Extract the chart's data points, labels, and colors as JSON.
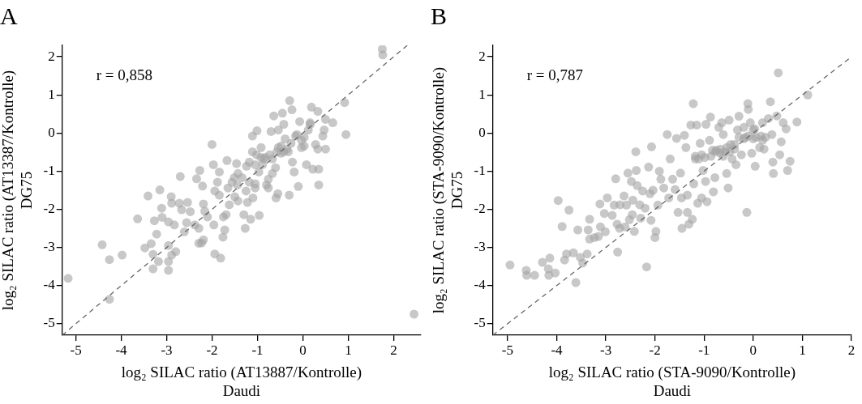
{
  "chart_data": [
    {
      "type": "scatter",
      "title": "A",
      "xlabel": "log₂ SILAC ratio (AT13887/Kontrolle)\nDaudi",
      "ylabel": "log₂ SILAC ratio (AT13387/Kontrolle)\nDG75",
      "annotations": [
        "r = 0,858"
      ],
      "xlim": [
        -5.3,
        2.6
      ],
      "ylim": [
        -5.3,
        2.3
      ],
      "xticks": [
        -5,
        -4,
        -3,
        -2,
        -1,
        0,
        1,
        2
      ],
      "yticks": [
        -5,
        -4,
        -3,
        -2,
        -1,
        0,
        1,
        2
      ],
      "grid": false,
      "legend": false,
      "series": [
        {
          "type": "scatter",
          "marker": "circle",
          "color": "#a3a3a3",
          "x": [
            -5.17,
            -4.42,
            -4.26,
            -3.98,
            -4.26,
            -3.64,
            -3.48,
            -3.34,
            -3.3,
            -3.3,
            -3.22,
            -3.18,
            -3.27,
            -3.41,
            -3.15,
            -3.11,
            -3.1,
            -2.96,
            -2.96,
            -2.96,
            -2.96,
            -2.9,
            -2.89,
            -2.83,
            -2.8,
            -2.89,
            -2.72,
            -2.7,
            -2.67,
            -2.61,
            -2.56,
            -2.54,
            -2.48,
            -2.38,
            -2.34,
            -2.29,
            -2.27,
            -2.29,
            -2.23,
            -2.19,
            -2.21,
            -2.19,
            -2.16,
            -2.1,
            -2.0,
            -1.97,
            -1.96,
            -1.94,
            -1.81,
            -1.94,
            -1.88,
            -1.84,
            -1.84,
            -1.76,
            -1.75,
            -1.72,
            -1.69,
            -1.67,
            -1.65,
            -1.62,
            -1.51,
            -1.5,
            -1.46,
            -1.44,
            -1.43,
            -1.34,
            -1.3,
            -1.27,
            -1.25,
            -1.22,
            -1.18,
            -1.15,
            -1.1,
            -1.05,
            -1.05,
            -1.02,
            -0.96,
            -0.97,
            -1.11,
            -1.01,
            -0.92,
            -0.86,
            -0.8,
            -0.76,
            -0.7,
            -0.67,
            -0.64,
            -0.59,
            -0.55,
            -0.54,
            -0.48,
            -0.45,
            -0.42,
            -0.39,
            -0.35,
            -0.3,
            -0.29,
            -0.24,
            -0.23,
            -0.19,
            -0.13,
            -0.1,
            -0.07,
            -0.03,
            0.03,
            0.16,
            0.19,
            0.22,
            0.33,
            0.35,
            0.35,
            0.28,
            0.33,
            0.44,
            0.47,
            0.5,
            0.5,
            0.66,
            0.92,
            0.95,
            -0.92,
            -0.83,
            -0.73,
            -0.67,
            -0.57,
            -0.54,
            -0.48,
            -0.42,
            -0.32,
            -0.26,
            -0.16,
            -0.03,
            0.03,
            0.12,
            0.16,
            0.08,
            -1.18,
            -1.24,
            -1.11,
            -0.89,
            -0.76,
            -0.6,
            -1.43,
            -1.56,
            -1.05,
            1.75,
            1.76,
            2.45
          ],
          "values": [
            -3.81,
            -2.93,
            -3.32,
            -3.2,
            -4.36,
            -2.25,
            -3.01,
            -2.9,
            -3.18,
            -3.56,
            -2.65,
            -3.37,
            -2.3,
            -1.65,
            -1.49,
            -1.97,
            -2.21,
            -2.33,
            -2.95,
            -3.37,
            -3.6,
            -1.67,
            -1.84,
            -2.41,
            -3.11,
            -3.2,
            -1.84,
            -1.14,
            -2.01,
            -2.59,
            -2.35,
            -1.82,
            -2.06,
            -2.41,
            -1.2,
            -2.5,
            -0.98,
            -2.89,
            -2.88,
            -2.8,
            -1.39,
            -1.86,
            -2.05,
            -2.2,
            -0.3,
            -0.83,
            -2.41,
            -3.17,
            -3.28,
            -1.52,
            -1.29,
            -1.02,
            -1.63,
            -2.73,
            -2.2,
            -2.54,
            -2.14,
            -0.72,
            -1.44,
            -1.88,
            -1.17,
            -1.67,
            -0.8,
            -1.36,
            -1.78,
            -1.17,
            -2.14,
            -2.5,
            -1.52,
            -1.82,
            -1.29,
            -2.26,
            -1.7,
            -1.33,
            -0.83,
            -0.57,
            -2.16,
            -1.02,
            -0.08,
            0.06,
            -0.38,
            -0.68,
            -1.36,
            -1.21,
            0.04,
            -1.06,
            0.45,
            -1.7,
            -1.59,
            0.08,
            -0.53,
            0.52,
            0.23,
            -0.15,
            -0.42,
            -1.63,
            0.85,
            0.61,
            -0.76,
            -1.02,
            -0.04,
            -1.4,
            0.3,
            -0.38,
            -0.34,
            0.27,
            0.68,
            -0.95,
            0.57,
            -0.95,
            -1.36,
            -0.3,
            -0.42,
            -0.08,
            0.08,
            0.36,
            -0.42,
            0.27,
            0.8,
            -0.04,
            -0.64,
            -0.64,
            -0.57,
            -0.68,
            -0.49,
            -0.38,
            -0.34,
            -0.49,
            -0.49,
            -0.27,
            -0.08,
            -0.19,
            -0.11,
            0.08,
            0.23,
            -0.83,
            -0.76,
            -0.87,
            -0.49,
            -0.83,
            -1.44,
            -0.91,
            -1.06,
            -1.29,
            -1.44,
            2.2,
            2.05,
            -4.75
          ]
        },
        {
          "type": "line",
          "color": "#666666",
          "line_style": "dashed",
          "x": [
            -5.3,
            2.3
          ],
          "values": [
            -5.3,
            2.3
          ]
        }
      ]
    },
    {
      "type": "scatter",
      "title": "B",
      "xlabel": "log₂ SILAC ratio (STA-9090/Kontrolle)\nDaudi",
      "ylabel": "log₂ SILAC ratio (STA-9090/Kontrolle)\nDG75",
      "annotations": [
        "r = 0,787"
      ],
      "xlim": [
        -5.3,
        2.0
      ],
      "ylim": [
        -5.3,
        2.3
      ],
      "xticks": [
        -5,
        -4,
        -3,
        -2,
        -1,
        0,
        1,
        2
      ],
      "yticks": [
        -5,
        -4,
        -3,
        -2,
        -1,
        0,
        1,
        2
      ],
      "grid": false,
      "legend": false,
      "series": [
        {
          "type": "scatter",
          "marker": "circle",
          "color": "#a3a3a3",
          "x": [
            -4.95,
            -4.62,
            -4.61,
            -4.45,
            -4.29,
            -4.14,
            -4.17,
            -4.16,
            -4.03,
            -3.97,
            -3.89,
            -3.84,
            -3.8,
            -3.75,
            -3.66,
            -3.61,
            -3.57,
            -3.52,
            -3.47,
            -3.38,
            -3.36,
            -3.33,
            -3.33,
            -3.23,
            -3.15,
            -3.12,
            -3.11,
            -3.03,
            -3.01,
            -2.97,
            -2.87,
            -2.83,
            -2.8,
            -2.77,
            -2.76,
            -2.72,
            -2.71,
            -2.63,
            -2.61,
            -2.58,
            -2.55,
            -2.52,
            -2.48,
            -2.46,
            -2.45,
            -2.42,
            -2.39,
            -2.38,
            -2.36,
            -2.31,
            -2.29,
            -2.25,
            -2.2,
            -2.17,
            -2.13,
            -2.1,
            -2.08,
            -2.07,
            -2.04,
            -2.0,
            -1.98,
            -1.94,
            -1.91,
            -1.88,
            -1.82,
            -1.75,
            -1.72,
            -1.69,
            -1.64,
            -1.59,
            -1.56,
            -1.53,
            -1.48,
            -1.46,
            -1.45,
            -1.4,
            -1.37,
            -1.34,
            -1.34,
            -1.31,
            -1.27,
            -1.24,
            -1.22,
            -1.21,
            -1.18,
            -1.15,
            -1.13,
            -1.08,
            -1.05,
            -1.02,
            -0.97,
            -0.96,
            -0.94,
            -0.89,
            -0.87,
            -0.86,
            -0.81,
            -0.78,
            -0.75,
            -0.7,
            -0.67,
            -0.64,
            -0.61,
            -0.57,
            -0.54,
            -0.51,
            -0.49,
            -0.46,
            -0.43,
            -0.38,
            -0.35,
            -0.32,
            -0.29,
            -0.24,
            -0.19,
            -0.16,
            -0.13,
            -0.11,
            -0.1,
            -0.06,
            -0.03,
            0.0,
            0.03,
            0.04,
            0.13,
            0.16,
            0.19,
            0.22,
            0.25,
            0.31,
            0.35,
            0.38,
            0.4,
            0.41,
            0.48,
            0.51,
            0.54,
            0.57,
            0.61,
            0.67,
            0.7,
            0.75,
            0.89,
            1.11,
            -1.18,
            -1.11,
            -1.05,
            -0.99,
            -0.83,
            -0.77,
            -0.67,
            -0.61,
            -0.54,
            -0.48,
            -0.38,
            -0.29,
            -0.19,
            -0.1,
            0.0,
            0.06,
            0.19
          ],
          "values": [
            -3.46,
            -3.6,
            -3.73,
            -3.73,
            -3.39,
            -3.28,
            -3.56,
            -3.73,
            -3.67,
            -1.77,
            -2.45,
            -3.33,
            -3.17,
            -2.02,
            -3.14,
            -3.92,
            -2.54,
            -3.26,
            -3.41,
            -3.17,
            -2.54,
            -2.26,
            -2.78,
            -2.74,
            -2.71,
            -1.86,
            -2.46,
            -2.11,
            -2.59,
            -1.7,
            -2.16,
            -1.89,
            -1.2,
            -2.39,
            -3.12,
            -2.5,
            -1.88,
            -1.65,
            -2.46,
            -1.89,
            -1.05,
            -2.27,
            -1.27,
            -2.14,
            -1.76,
            -2.58,
            -0.49,
            -0.98,
            -1.38,
            -1.88,
            -2.23,
            -1.52,
            -1.97,
            -3.51,
            -0.89,
            -1.59,
            -2.29,
            -0.36,
            -1.5,
            -2.74,
            -2.58,
            -1.89,
            -1.0,
            -1.21,
            -1.44,
            -0.04,
            -1.7,
            -0.68,
            -1.21,
            -1.48,
            -0.14,
            -2.08,
            -1.05,
            -1.7,
            -2.5,
            -0.06,
            -0.38,
            -2.08,
            -1.63,
            -2.39,
            0.21,
            -2.26,
            0.77,
            -1.33,
            -0.68,
            0.21,
            -1.84,
            -0.27,
            -1.7,
            -0.98,
            -1.27,
            0.23,
            -1.8,
            -0.19,
            0.42,
            -0.61,
            -1.54,
            -1.17,
            -0.45,
            0.15,
            -0.42,
            0.27,
            -0.04,
            -0.49,
            -1.06,
            -1.44,
            0.34,
            -0.3,
            -0.68,
            -0.42,
            -0.83,
            0.08,
            0.44,
            -0.57,
            0.15,
            -0.11,
            -2.08,
            0.77,
            0.62,
            0.27,
            -0.53,
            -0.15,
            0.11,
            -0.87,
            -0.38,
            -0.08,
            0.27,
            -0.42,
            -0.11,
            0.38,
            0.82,
            -0.04,
            -0.76,
            -1.06,
            0.45,
            1.58,
            -0.57,
            -0.23,
            0.27,
            0.11,
            -0.98,
            -0.74,
            0.29,
            1.0,
            -0.61,
            -0.68,
            -0.57,
            -0.64,
            -0.45,
            -0.49,
            -0.53,
            -0.61,
            -0.38,
            -0.49,
            -0.3,
            -0.11,
            -0.15,
            -0.08,
            0.08,
            -0.11,
            -0.19
          ]
        },
        {
          "type": "line",
          "color": "#666666",
          "line_style": "dashed",
          "x": [
            -5.3,
            2.0
          ],
          "values": [
            -5.3,
            2.0
          ]
        }
      ]
    }
  ]
}
